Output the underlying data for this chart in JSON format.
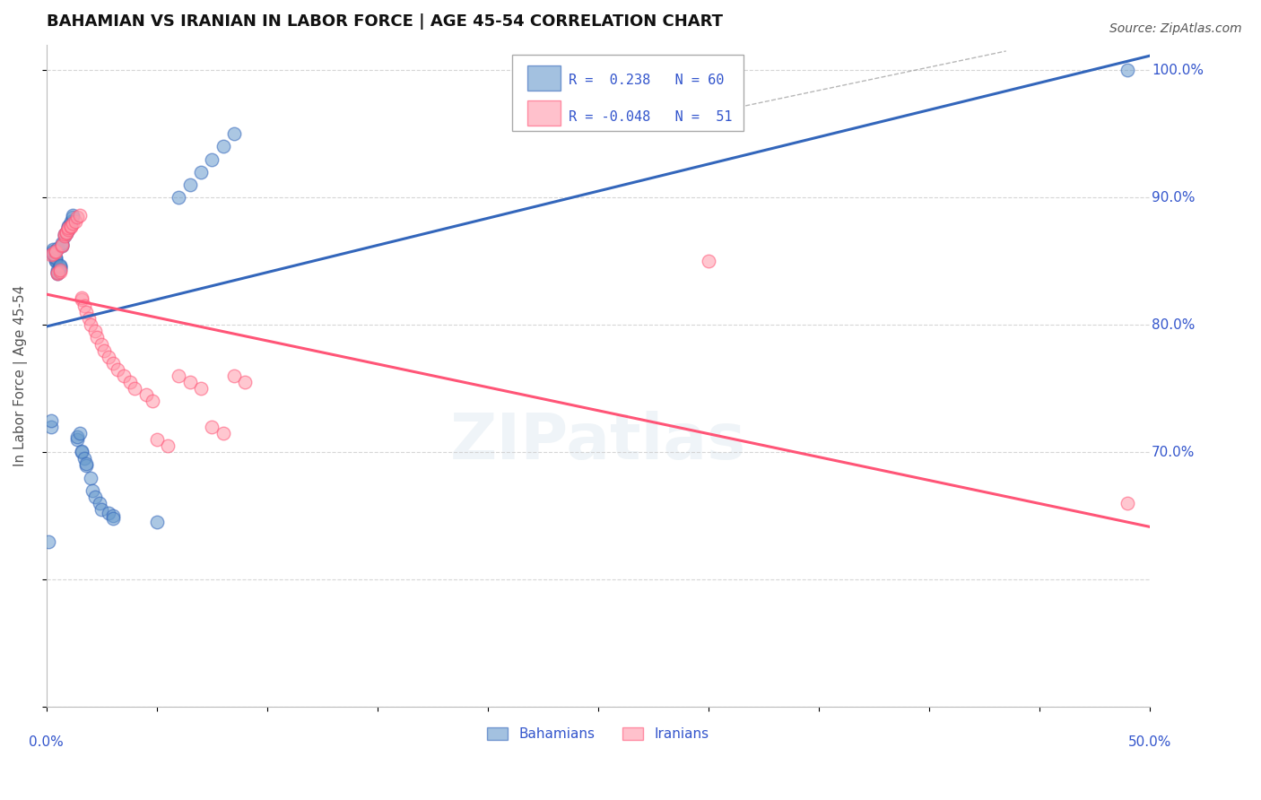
{
  "title": "BAHAMIAN VS IRANIAN IN LABOR FORCE | AGE 45-54 CORRELATION CHART",
  "source_text": "Source: ZipAtlas.com",
  "ylabel": "In Labor Force | Age 45-54",
  "xlim": [
    0.0,
    0.5
  ],
  "ylim": [
    0.5,
    1.02
  ],
  "ytick_values": [
    0.5,
    0.6,
    0.7,
    0.8,
    0.9,
    1.0
  ],
  "right_ytick_labels": [
    "100.0%",
    "90.0%",
    "80.0%",
    "70.0%"
  ],
  "right_ytick_values": [
    1.0,
    0.9,
    0.8,
    0.7
  ],
  "bahamian_R": 0.238,
  "bahamian_N": 60,
  "iranian_R": -0.048,
  "iranian_N": 51,
  "blue_color": "#6699CC",
  "pink_color": "#FF99AA",
  "blue_line_color": "#3366BB",
  "pink_line_color": "#FF5577",
  "label_color": "#3355CC",
  "grid_color": "#CCCCCC",
  "background_color": "#FFFFFF",
  "bahamian_x": [
    0.001,
    0.002,
    0.002,
    0.003,
    0.003,
    0.003,
    0.003,
    0.003,
    0.004,
    0.004,
    0.004,
    0.004,
    0.005,
    0.005,
    0.005,
    0.005,
    0.005,
    0.006,
    0.006,
    0.006,
    0.006,
    0.007,
    0.007,
    0.007,
    0.008,
    0.008,
    0.009,
    0.009,
    0.01,
    0.01,
    0.01,
    0.01,
    0.011,
    0.011,
    0.012,
    0.012,
    0.014,
    0.014,
    0.015,
    0.016,
    0.016,
    0.017,
    0.018,
    0.018,
    0.02,
    0.021,
    0.022,
    0.024,
    0.025,
    0.028,
    0.03,
    0.03,
    0.05,
    0.06,
    0.065,
    0.07,
    0.075,
    0.08,
    0.085,
    0.49
  ],
  "bahamian_y": [
    0.63,
    0.72,
    0.725,
    0.855,
    0.856,
    0.857,
    0.858,
    0.859,
    0.85,
    0.851,
    0.852,
    0.853,
    0.84,
    0.841,
    0.842,
    0.843,
    0.86,
    0.844,
    0.845,
    0.846,
    0.847,
    0.862,
    0.863,
    0.864,
    0.87,
    0.871,
    0.872,
    0.873,
    0.875,
    0.876,
    0.877,
    0.878,
    0.88,
    0.881,
    0.885,
    0.886,
    0.71,
    0.712,
    0.715,
    0.7,
    0.701,
    0.695,
    0.69,
    0.691,
    0.68,
    0.67,
    0.665,
    0.66,
    0.655,
    0.652,
    0.65,
    0.648,
    0.645,
    0.9,
    0.91,
    0.92,
    0.93,
    0.94,
    0.95,
    1.0
  ],
  "iranian_x": [
    0.002,
    0.003,
    0.004,
    0.004,
    0.005,
    0.005,
    0.006,
    0.006,
    0.007,
    0.007,
    0.008,
    0.008,
    0.009,
    0.009,
    0.01,
    0.01,
    0.011,
    0.011,
    0.012,
    0.013,
    0.014,
    0.015,
    0.016,
    0.016,
    0.017,
    0.018,
    0.019,
    0.02,
    0.022,
    0.023,
    0.025,
    0.026,
    0.028,
    0.03,
    0.032,
    0.035,
    0.038,
    0.04,
    0.045,
    0.048,
    0.05,
    0.055,
    0.06,
    0.065,
    0.07,
    0.075,
    0.08,
    0.085,
    0.09,
    0.3,
    0.49
  ],
  "iranian_y": [
    0.855,
    0.856,
    0.857,
    0.858,
    0.84,
    0.841,
    0.842,
    0.843,
    0.862,
    0.863,
    0.87,
    0.871,
    0.872,
    0.873,
    0.875,
    0.876,
    0.877,
    0.878,
    0.88,
    0.881,
    0.885,
    0.886,
    0.82,
    0.821,
    0.815,
    0.81,
    0.805,
    0.8,
    0.795,
    0.79,
    0.785,
    0.78,
    0.775,
    0.77,
    0.765,
    0.76,
    0.755,
    0.75,
    0.745,
    0.74,
    0.71,
    0.705,
    0.76,
    0.755,
    0.75,
    0.72,
    0.715,
    0.76,
    0.755,
    0.85,
    0.66
  ]
}
